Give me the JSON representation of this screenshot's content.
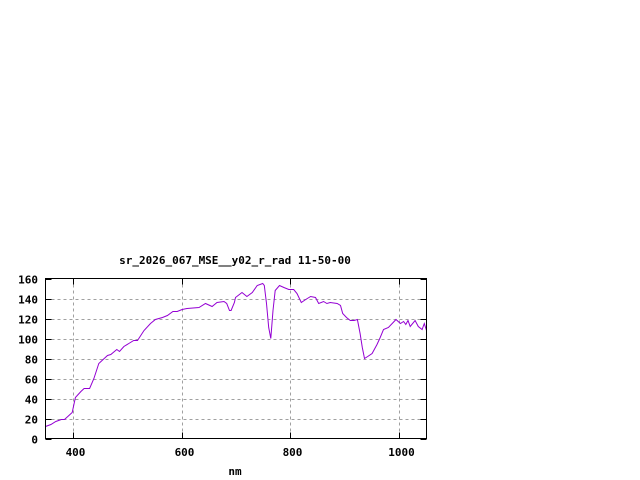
{
  "chart_data": {
    "type": "line",
    "title": "sr_2026_067_MSE__y02_r_rad 11-50-00",
    "xlabel": "nm",
    "ylabel": "",
    "xlim": [
      350,
      1050
    ],
    "ylim": [
      0,
      160
    ],
    "xticks": [
      400,
      600,
      800,
      1000
    ],
    "yticks": [
      0,
      20,
      40,
      60,
      80,
      100,
      120,
      140,
      160
    ],
    "grid": true,
    "line_color": "#9400d3",
    "series": [
      {
        "x": [
          350,
          360,
          369,
          379,
          385,
          393,
          399,
          405,
          415,
          421,
          431,
          439,
          448,
          464,
          470,
          481,
          486,
          494,
          503,
          512,
          519,
          531,
          543,
          552,
          565,
          574,
          584,
          592,
          601,
          610,
          632,
          644,
          656,
          665,
          678,
          683,
          688,
          691,
          697,
          699,
          711,
          720,
          730,
          739,
          749,
          752,
          756,
          760,
          764,
          768,
          772,
          780,
          788,
          797,
          806,
          812,
          820,
          828,
          837,
          846,
          852,
          861,
          867,
          873,
          886,
          892,
          896,
          903,
          910,
          917,
          923,
          928,
          932,
          936,
          942,
          950,
          959,
          965,
          971,
          980,
          987,
          994,
          1002,
          1008,
          1012,
          1016,
          1020,
          1029,
          1035,
          1042,
          1046,
          1050
        ],
        "y": [
          12,
          14,
          17,
          19,
          19,
          23,
          26,
          41,
          47,
          50,
          50,
          60,
          75,
          83,
          84,
          89,
          87,
          92,
          95,
          98,
          98,
          108,
          115,
          119,
          121,
          123,
          127,
          127,
          129,
          130,
          131,
          135,
          132,
          136,
          137,
          135,
          128,
          128,
          136,
          141,
          146,
          142,
          146,
          153,
          155,
          153,
          135,
          111,
          100,
          128,
          148,
          153,
          151,
          149,
          149,
          145,
          136,
          139,
          142,
          141,
          135,
          137,
          135,
          136,
          135,
          133,
          125,
          121,
          118,
          118,
          119,
          105,
          91,
          80,
          82,
          85,
          94,
          101,
          109,
          111,
          115,
          119,
          115,
          117,
          114,
          118,
          112,
          118,
          112,
          109,
          115,
          108
        ]
      }
    ]
  }
}
